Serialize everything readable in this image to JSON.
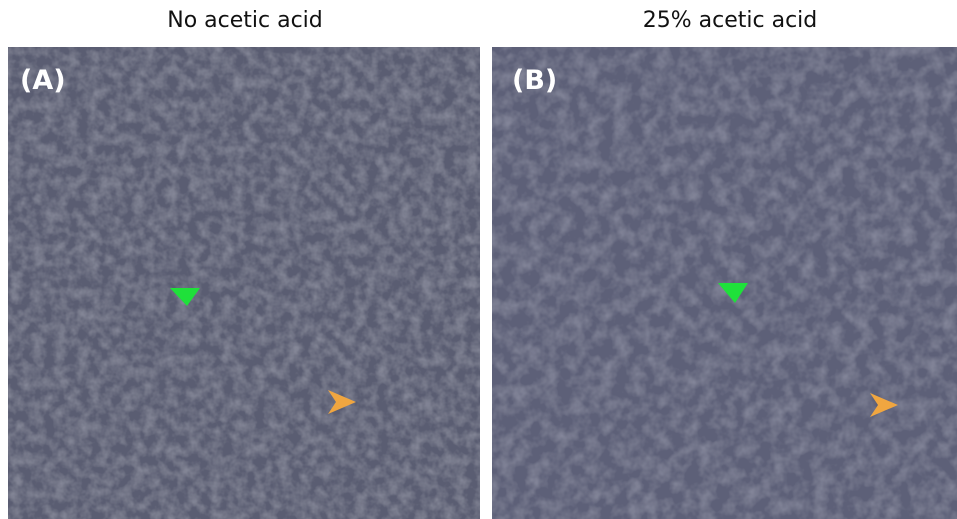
{
  "panels": [
    {
      "title": "No acetic acid",
      "label": "(A)"
    },
    {
      "title": "25% acetic acid",
      "label": "(B)"
    }
  ]
}
